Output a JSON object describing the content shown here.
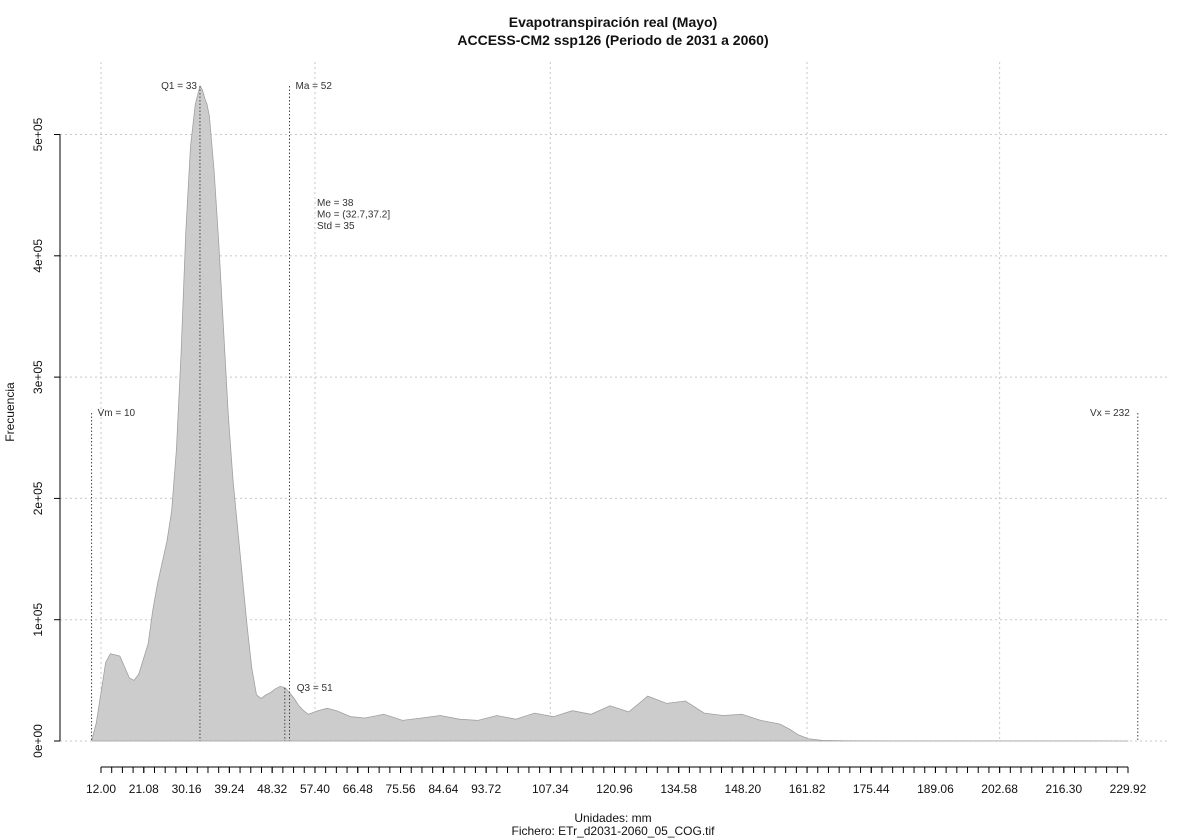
{
  "chart_data": {
    "type": "area",
    "title": "Evapotranspiración real (Mayo)",
    "subtitle": "ACCESS-CM2 ssp126 (Periodo de 2031 a 2060)",
    "xlabel": "Unidades: mm",
    "ylabel": "Frecuencia",
    "footer": "Fichero: ETr_d2031-2060_05_COG.tif",
    "xlim": [
      12,
      229.92
    ],
    "ylim": [
      0,
      540000
    ],
    "x_ticks": [
      12.0,
      21.08,
      30.16,
      39.24,
      48.32,
      57.4,
      66.48,
      75.56,
      84.64,
      93.72,
      107.34,
      120.96,
      134.58,
      148.2,
      161.82,
      175.44,
      189.06,
      202.68,
      216.3,
      229.92
    ],
    "x_tick_labels": [
      "12.00",
      "21.08",
      "30.16",
      "39.24",
      "48.32",
      "57.40",
      "66.48",
      "75.56",
      "84.64",
      "93.72",
      "107.34",
      "120.96",
      "134.58",
      "148.20",
      "161.82",
      "175.44",
      "189.06",
      "202.68",
      "216.30",
      "229.92"
    ],
    "y_ticks": [
      0,
      100000,
      200000,
      300000,
      400000,
      500000
    ],
    "y_tick_labels": [
      "0e+00",
      "1e+05",
      "2e+05",
      "3e+05",
      "4e+05",
      "5e+05"
    ],
    "x_grid": [
      12.0,
      57.4,
      107.34,
      161.82,
      202.68
    ],
    "grid": true,
    "fill_color": "#cccccc",
    "line_color": "#a0a0a0",
    "series": [
      {
        "x": [
          10,
          11,
          12,
          13,
          14,
          16,
          18,
          19,
          20,
          22,
          23,
          24,
          26,
          27,
          28,
          29,
          30,
          31,
          32,
          33,
          33.5,
          34,
          34.5,
          35,
          36,
          37,
          38,
          39,
          40,
          42,
          43,
          44,
          45,
          46,
          47,
          48,
          49,
          50,
          51,
          52,
          53,
          54,
          55,
          56,
          58,
          60,
          62,
          65,
          68,
          72,
          76,
          80,
          84,
          88,
          92,
          96,
          100,
          104,
          108,
          112,
          116,
          120,
          124,
          128,
          132,
          136,
          140,
          144,
          148,
          152,
          156,
          158,
          160,
          162,
          165,
          170,
          180,
          200,
          220,
          230
        ],
        "y": [
          0,
          15000,
          40000,
          65000,
          72000,
          70000,
          52000,
          50000,
          55000,
          80000,
          108000,
          130000,
          165000,
          190000,
          240000,
          320000,
          420000,
          490000,
          525000,
          540000,
          537000,
          530000,
          525000,
          515000,
          470000,
          410000,
          340000,
          270000,
          215000,
          135000,
          95000,
          60000,
          38000,
          35000,
          38000,
          40000,
          43000,
          45000,
          44000,
          40000,
          35000,
          29000,
          25000,
          22000,
          25000,
          27000,
          25000,
          20000,
          19000,
          22000,
          17000,
          19000,
          21000,
          18000,
          17000,
          21000,
          18000,
          23000,
          20000,
          25000,
          22000,
          29000,
          24000,
          37000,
          31000,
          33000,
          23000,
          21000,
          22000,
          17000,
          14000,
          10000,
          5000,
          2000,
          500,
          200,
          100,
          100,
          100,
          0
        ]
      }
    ],
    "markers": [
      {
        "label": "Q1 = 33",
        "value": 33
      },
      {
        "label": "Ma = 52",
        "value": 52
      },
      {
        "label": "Q3 = 51",
        "value": 51
      },
      {
        "label": "Vm = 10",
        "value": 10
      },
      {
        "label": "Vx = 232",
        "value": 232
      }
    ],
    "stats": [
      "Me = 38",
      "Mo = (32.7,37.2]",
      "Std = 35"
    ]
  }
}
